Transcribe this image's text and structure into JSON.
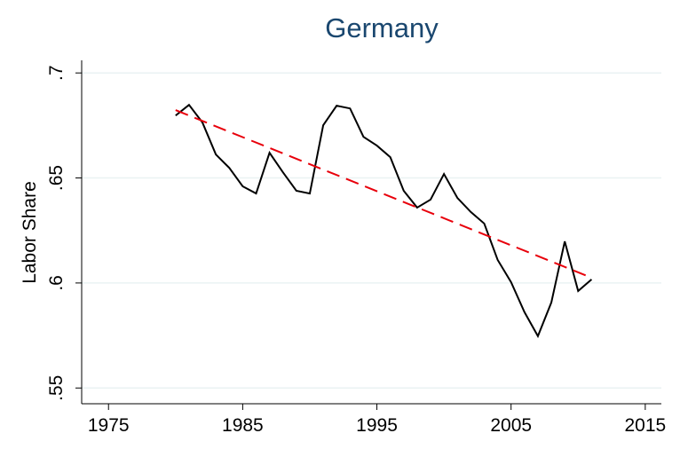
{
  "chart_data": {
    "type": "line",
    "title": "Germany",
    "y_label": "Labor Share",
    "x": [
      1980,
      1981,
      1982,
      1983,
      1984,
      1985,
      1986,
      1987,
      1988,
      1989,
      1990,
      1991,
      1992,
      1993,
      1994,
      1995,
      1996,
      1997,
      1998,
      1999,
      2000,
      2001,
      2002,
      2003,
      2004,
      2005,
      2006,
      2007,
      2008,
      2009,
      2010,
      2011
    ],
    "series": [
      {
        "color": "#000000",
        "values": [
          0.6797,
          0.6848,
          0.6764,
          0.6612,
          0.6548,
          0.646,
          0.6426,
          0.662,
          0.6527,
          0.6439,
          0.6426,
          0.6751,
          0.6844,
          0.6831,
          0.6696,
          0.6654,
          0.6599,
          0.6439,
          0.6359,
          0.6397,
          0.6519,
          0.6405,
          0.6338,
          0.6283,
          0.611,
          0.6004,
          0.5861,
          0.5747,
          0.5907,
          0.6198,
          0.5962,
          0.6017
        ]
      },
      {
        "color": "#e8000b",
        "dashed": true,
        "x": [
          1980,
          2011
        ],
        "values": [
          0.6823,
          0.6025
        ]
      }
    ],
    "xlim": [
      1973,
      2016.2
    ],
    "ylim": [
      0.5425,
      0.706
    ],
    "xticks": [
      1975,
      1985,
      1995,
      2005,
      2015
    ],
    "yticks": [
      {
        "value": 0.55,
        "label": ".55"
      },
      {
        "value": 0.6,
        "label": ".6"
      },
      {
        "value": 0.65,
        "label": ".65"
      },
      {
        "value": 0.7,
        "label": ".7"
      }
    ],
    "grid": true
  }
}
